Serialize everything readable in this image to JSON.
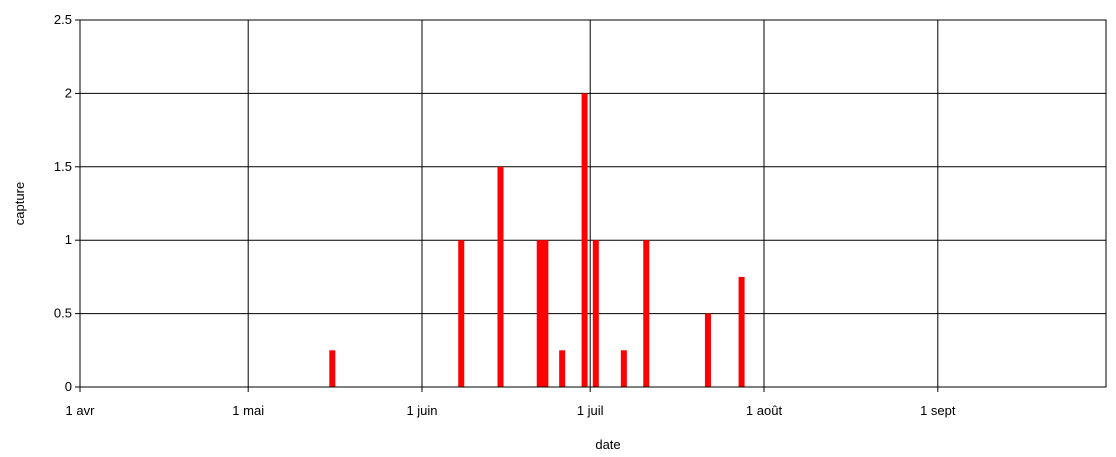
{
  "chart_data": {
    "type": "bar",
    "title": "",
    "xlabel": "date",
    "ylabel": "capture",
    "grid": true,
    "legend": "none",
    "x_axis": {
      "type": "date",
      "range": [
        "2020-04-01",
        "2020-09-30"
      ],
      "ticks": [
        {
          "date": "2020-04-01",
          "label": "1 avr"
        },
        {
          "date": "2020-05-01",
          "label": "1 mai"
        },
        {
          "date": "2020-06-01",
          "label": "1 juin"
        },
        {
          "date": "2020-07-01",
          "label": "1 juil"
        },
        {
          "date": "2020-08-01",
          "label": "1 août"
        },
        {
          "date": "2020-09-01",
          "label": "1 sept"
        }
      ]
    },
    "y_axis": {
      "range": [
        0,
        2.5
      ],
      "ticks": [
        {
          "value": 0,
          "label": "0"
        },
        {
          "value": 0.5,
          "label": "0.5"
        },
        {
          "value": 1,
          "label": "1"
        },
        {
          "value": 1.5,
          "label": "1.5"
        },
        {
          "value": 2,
          "label": "2"
        },
        {
          "value": 2.5,
          "label": "2.5"
        }
      ]
    },
    "series": [
      {
        "color": "#ff0000",
        "points": [
          {
            "x": "2020-05-16",
            "y": 0.25
          },
          {
            "x": "2020-06-08",
            "y": 1
          },
          {
            "x": "2020-06-15",
            "y": 1.5
          },
          {
            "x": "2020-06-22",
            "y": 1
          },
          {
            "x": "2020-06-23",
            "y": 1
          },
          {
            "x": "2020-06-26",
            "y": 0.25
          },
          {
            "x": "2020-06-30",
            "y": 2
          },
          {
            "x": "2020-07-02",
            "y": 1
          },
          {
            "x": "2020-07-07",
            "y": 0.25
          },
          {
            "x": "2020-07-11",
            "y": 1
          },
          {
            "x": "2020-07-22",
            "y": 0.5
          },
          {
            "x": "2020-07-28",
            "y": 0.75
          }
        ]
      }
    ]
  }
}
